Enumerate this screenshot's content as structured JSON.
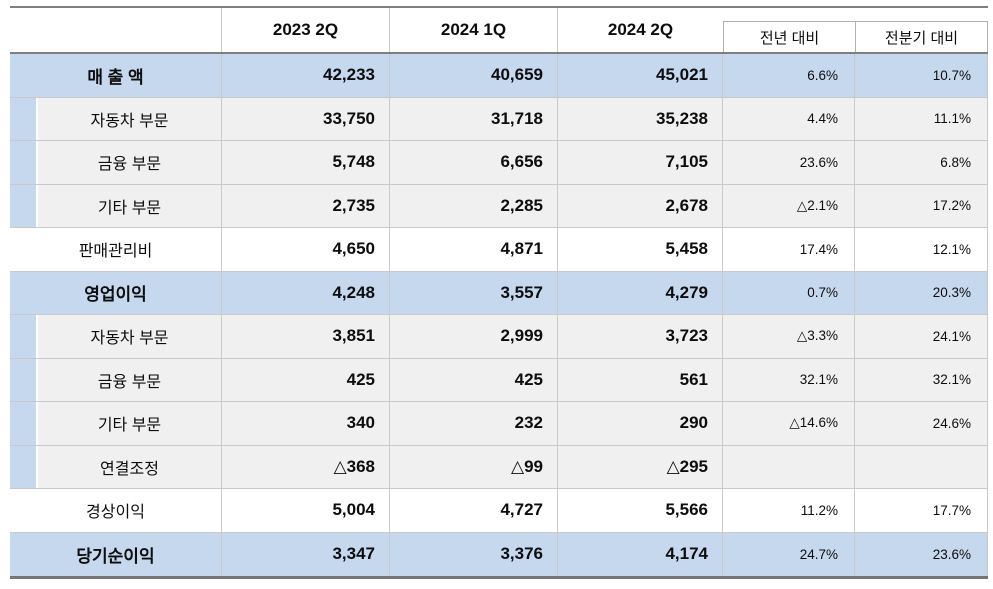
{
  "colors": {
    "row_highlight_blue": "#c6d8ee",
    "row_sub_gray": "#f0f0f0",
    "border_light": "#c9c9c9",
    "border_dark": "#7f7f7f"
  },
  "table": {
    "header": {
      "corner": "",
      "q1": "2023 2Q",
      "q2": "2024 1Q",
      "q3": "2024 2Q",
      "cmp_yoy": "전년 대비",
      "cmp_qoq": "전분기 대비"
    }
  },
  "chart_data": {
    "type": "table",
    "title": "",
    "columns": [
      "",
      "2023 2Q",
      "2024 1Q",
      "2024 2Q",
      "전년 대비",
      "전분기 대비"
    ],
    "rows": [
      {
        "label": "매 출 액",
        "style": "total",
        "values": [
          "42,233",
          "40,659",
          "45,021"
        ],
        "yoy": "6.6%",
        "qoq": "10.7%"
      },
      {
        "label": "자동차 부문",
        "style": "sub",
        "values": [
          "33,750",
          "31,718",
          "35,238"
        ],
        "yoy": "4.4%",
        "qoq": "11.1%"
      },
      {
        "label": "금융 부문",
        "style": "sub",
        "values": [
          "5,748",
          "6,656",
          "7,105"
        ],
        "yoy": "23.6%",
        "qoq": "6.8%"
      },
      {
        "label": "기타 부문",
        "style": "sub",
        "values": [
          "2,735",
          "2,285",
          "2,678"
        ],
        "yoy": "△2.1%",
        "qoq": "17.2%"
      },
      {
        "label": "판매관리비",
        "style": "plain",
        "values": [
          "4,650",
          "4,871",
          "5,458"
        ],
        "yoy": "17.4%",
        "qoq": "12.1%"
      },
      {
        "label": "영업이익",
        "style": "total",
        "values": [
          "4,248",
          "3,557",
          "4,279"
        ],
        "yoy": "0.7%",
        "qoq": "20.3%"
      },
      {
        "label": "자동차 부문",
        "style": "sub",
        "values": [
          "3,851",
          "2,999",
          "3,723"
        ],
        "yoy": "△3.3%",
        "qoq": "24.1%"
      },
      {
        "label": "금융 부문",
        "style": "sub",
        "values": [
          "425",
          "425",
          "561"
        ],
        "yoy": "32.1%",
        "qoq": "32.1%"
      },
      {
        "label": "기타 부문",
        "style": "sub",
        "values": [
          "340",
          "232",
          "290"
        ],
        "yoy": "△14.6%",
        "qoq": "24.6%"
      },
      {
        "label": "연결조정",
        "style": "sub",
        "values": [
          "△368",
          "△99",
          "△295"
        ],
        "yoy": "",
        "qoq": ""
      },
      {
        "label": "경상이익",
        "style": "plain",
        "values": [
          "5,004",
          "4,727",
          "5,566"
        ],
        "yoy": "11.2%",
        "qoq": "17.7%"
      },
      {
        "label": "당기순이익",
        "style": "total",
        "values": [
          "3,347",
          "3,376",
          "4,174"
        ],
        "yoy": "24.7%",
        "qoq": "23.6%"
      }
    ]
  }
}
